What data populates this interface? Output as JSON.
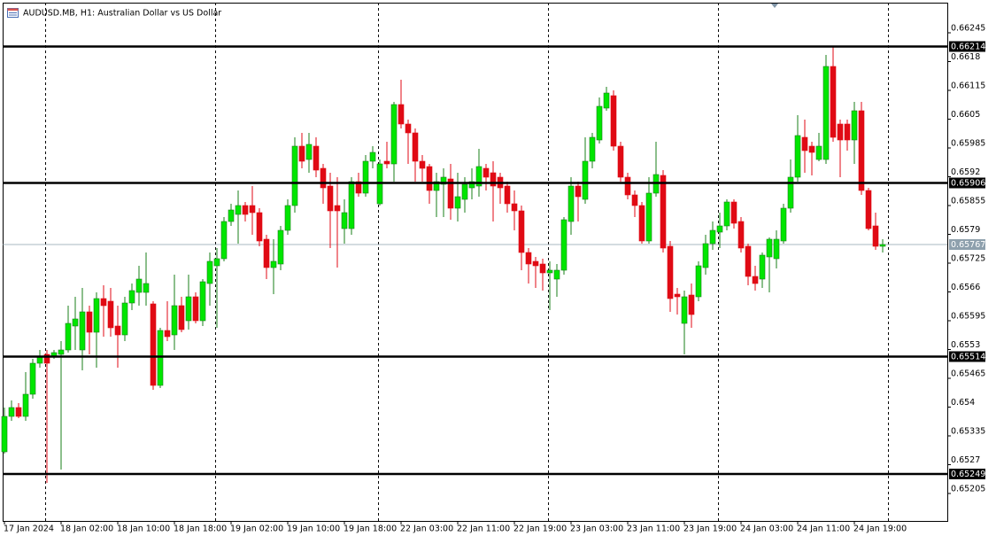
{
  "chart_data": {
    "type": "candlestick",
    "title": "AUDUSD.MB, H1:  Australian Dollar vs US Dollar",
    "categories": [
      "17 Jan 2024",
      null,
      null,
      null,
      null,
      null,
      null,
      null,
      "18 Jan 02:00",
      null,
      null,
      null,
      null,
      null,
      null,
      null,
      "18 Jan 10:00",
      null,
      null,
      null,
      null,
      null,
      null,
      null,
      "18 Jan 18:00",
      null,
      null,
      null,
      null,
      null,
      null,
      null,
      "19 Jan 02:00",
      null,
      null,
      null,
      null,
      null,
      null,
      null,
      "19 Jan 10:00",
      null,
      null,
      null,
      null,
      null,
      null,
      null,
      "19 Jan 18:00",
      null,
      null,
      null,
      null,
      null,
      null,
      null,
      "22 Jan 03:00",
      null,
      null,
      null,
      null,
      null,
      null,
      null,
      "22 Jan 11:00",
      null,
      null,
      null,
      null,
      null,
      null,
      null,
      "22 Jan 19:00",
      null,
      null,
      null,
      null,
      null,
      null,
      null,
      "23 Jan 03:00",
      null,
      null,
      null,
      null,
      null,
      null,
      null,
      "23 Jan 11:00",
      null,
      null,
      null,
      null,
      null,
      null,
      null,
      "23 Jan 19:00",
      null,
      null,
      null,
      null,
      null,
      null,
      null,
      "24 Jan 03:00",
      null,
      null,
      null,
      null,
      null,
      null,
      null,
      "24 Jan 11:00",
      null,
      null,
      null,
      null,
      null,
      null,
      null,
      "24 Jan 19:00",
      null,
      null,
      null,
      null
    ],
    "open": [
      0.65299,
      0.65379,
      0.65399,
      0.65379,
      0.65429,
      0.65499,
      0.65519,
      0.65515,
      0.65519,
      0.65529,
      0.65583,
      0.65529,
      0.65615,
      0.65569,
      0.65645,
      0.65639,
      0.65583,
      0.65563,
      0.65635,
      0.65659,
      0.65659,
      0.65633,
      0.65449,
      0.65573,
      0.65563,
      0.65629,
      0.65595,
      0.65649,
      0.65595,
      0.65679,
      0.65719,
      0.65735,
      0.65819,
      0.65835,
      0.65855,
      0.65855,
      0.65839,
      0.65779,
      0.65715,
      0.65723,
      0.65799,
      0.65855,
      0.65989,
      0.65959,
      0.65989,
      0.65939,
      0.65899,
      0.65855,
      0.65803,
      0.65803,
      0.65909,
      0.65883,
      0.65955,
      0.65859,
      0.65955,
      0.65949,
      0.66083,
      0.66039,
      0.66019,
      0.65955,
      0.65943,
      0.65889,
      0.65903,
      0.65915,
      0.65849,
      0.65869,
      0.65895,
      0.65899,
      0.65939,
      0.65929,
      0.65919,
      0.65899,
      0.65859,
      0.65843,
      0.65749,
      0.65729,
      0.65723,
      0.65703,
      0.65689,
      0.65709,
      0.65819,
      0.65899,
      0.65869,
      0.65955,
      0.66003,
      0.66075,
      0.66103,
      0.65989,
      0.65919,
      0.65879,
      0.65855,
      0.65775,
      0.65883,
      0.65923,
      0.65763,
      0.65655,
      0.65589,
      0.65653,
      0.65649,
      0.65715,
      0.65769,
      0.65795,
      0.65809,
      0.65863,
      0.65819,
      0.65763,
      0.65695,
      0.65689,
      0.65739,
      0.65735,
      0.65775,
      0.65849,
      0.65919,
      0.66009,
      0.65989,
      0.65959,
      0.65959,
      0.66169,
      0.66039,
      0.66039,
      0.66003,
      0.66069,
      0.65889,
      0.65809,
      0.65763
    ],
    "high": [
      0.65399,
      0.65415,
      0.65409,
      0.65479,
      0.65509,
      0.65529,
      0.65529,
      0.65529,
      0.65549,
      0.65629,
      0.65649,
      0.65669,
      0.65629,
      0.65659,
      0.65675,
      0.65669,
      0.65629,
      0.65649,
      0.65679,
      0.65719,
      0.65749,
      0.65639,
      0.65579,
      0.65639,
      0.65699,
      0.65649,
      0.65699,
      0.65659,
      0.65689,
      0.65749,
      0.65759,
      0.65829,
      0.65859,
      0.65889,
      0.65863,
      0.65899,
      0.65849,
      0.65789,
      0.65779,
      0.65809,
      0.65869,
      0.66009,
      0.66019,
      0.66019,
      0.66009,
      0.65949,
      0.65929,
      0.65919,
      0.65869,
      0.65919,
      0.65929,
      0.65969,
      0.65989,
      0.65959,
      0.65999,
      0.66089,
      0.66139,
      0.66049,
      0.66029,
      0.65969,
      0.65949,
      0.65929,
      0.65939,
      0.65949,
      0.65929,
      0.65919,
      0.65939,
      0.65983,
      0.65949,
      0.65955,
      0.65929,
      0.65909,
      0.65889,
      0.65855,
      0.65759,
      0.65739,
      0.65735,
      0.65729,
      0.65723,
      0.65829,
      0.65919,
      0.65909,
      0.66009,
      0.66019,
      0.66099,
      0.66123,
      0.66115,
      0.65999,
      0.65929,
      0.65889,
      0.65863,
      0.65919,
      0.65999,
      0.65935,
      0.65775,
      0.65669,
      0.65663,
      0.65679,
      0.65729,
      0.65789,
      0.65819,
      0.65839,
      0.65869,
      0.65869,
      0.65829,
      0.65769,
      0.65719,
      0.65749,
      0.65783,
      0.65799,
      0.65859,
      0.65959,
      0.66059,
      0.66049,
      0.65999,
      0.66019,
      0.66195,
      0.66215,
      0.66049,
      0.66049,
      0.66089,
      0.66089,
      0.65895,
      0.65839,
      0.65779
    ],
    "low": [
      0.65295,
      0.65369,
      0.65375,
      0.65369,
      0.65419,
      0.65489,
      0.65229,
      0.65509,
      0.65259,
      0.65523,
      0.65529,
      0.65483,
      0.65519,
      0.65489,
      0.65559,
      0.65559,
      0.65489,
      0.65549,
      0.65619,
      0.65629,
      0.65629,
      0.65439,
      0.65443,
      0.65549,
      0.65529,
      0.65569,
      0.65575,
      0.65589,
      0.65583,
      0.65629,
      0.65579,
      0.65729,
      0.65809,
      0.65769,
      0.65819,
      0.65789,
      0.65763,
      0.65689,
      0.65655,
      0.65709,
      0.65789,
      0.65839,
      0.65939,
      0.65929,
      0.65919,
      0.65859,
      0.65759,
      0.65715,
      0.65769,
      0.65789,
      0.65875,
      0.65875,
      0.65939,
      0.65855,
      0.65939,
      0.65909,
      0.66029,
      0.65949,
      0.65909,
      0.65909,
      0.65859,
      0.65829,
      0.65829,
      0.65823,
      0.65819,
      0.65839,
      0.65869,
      0.65875,
      0.65889,
      0.65819,
      0.65859,
      0.65839,
      0.65799,
      0.65709,
      0.65679,
      0.65669,
      0.65663,
      0.65619,
      0.65649,
      0.65699,
      0.65789,
      0.65819,
      0.65859,
      0.65939,
      0.65995,
      0.66069,
      0.65979,
      0.65909,
      0.65869,
      0.65829,
      0.65769,
      0.65769,
      0.65875,
      0.65749,
      0.65615,
      0.65609,
      0.65519,
      0.65579,
      0.65639,
      0.65699,
      0.65755,
      0.65759,
      0.65799,
      0.65803,
      0.65749,
      0.65675,
      0.65663,
      0.65669,
      0.65659,
      0.65713,
      0.65769,
      0.65839,
      0.65909,
      0.65929,
      0.65923,
      0.65955,
      0.65949,
      0.65999,
      0.65919,
      0.65979,
      0.65949,
      0.65879,
      0.65799,
      0.65755,
      0.65749
    ],
    "close": [
      0.65379,
      0.65399,
      0.65379,
      0.65429,
      0.65499,
      0.65513,
      0.65499,
      0.65523,
      0.65529,
      0.65589,
      0.65599,
      0.65615,
      0.65569,
      0.65645,
      0.65629,
      0.65579,
      0.65563,
      0.65635,
      0.65663,
      0.65689,
      0.65679,
      0.65449,
      0.65573,
      0.65559,
      0.65629,
      0.65575,
      0.65649,
      0.65595,
      0.65683,
      0.65729,
      0.65735,
      0.65819,
      0.65845,
      0.65855,
      0.65835,
      0.65839,
      0.65775,
      0.65715,
      0.65729,
      0.65799,
      0.65855,
      0.65989,
      0.65955,
      0.65993,
      0.65935,
      0.65895,
      0.65843,
      0.65843,
      0.65839,
      0.65909,
      0.65883,
      0.65955,
      0.65975,
      0.65949,
      0.65949,
      0.66083,
      0.66039,
      0.66019,
      0.65955,
      0.65939,
      0.65889,
      0.65909,
      0.65919,
      0.65849,
      0.65875,
      0.65903,
      0.65909,
      0.65943,
      0.65919,
      0.65899,
      0.65895,
      0.65859,
      0.65843,
      0.65749,
      0.65723,
      0.65719,
      0.65703,
      0.65709,
      0.65709,
      0.65823,
      0.65899,
      0.65875,
      0.65955,
      0.66009,
      0.66079,
      0.66109,
      0.65989,
      0.65919,
      0.65879,
      0.65855,
      0.65775,
      0.65883,
      0.65925,
      0.65759,
      0.65645,
      0.65649,
      0.65649,
      0.65609,
      0.65719,
      0.65769,
      0.65799,
      0.65809,
      0.65863,
      0.65815,
      0.65759,
      0.65695,
      0.65679,
      0.65743,
      0.65779,
      0.65779,
      0.65849,
      0.65919,
      0.66013,
      0.65979,
      0.65975,
      0.65989,
      0.66169,
      0.66009,
      0.66003,
      0.66003,
      0.66069,
      0.65889,
      0.65803,
      0.65763,
      0.65767
    ],
    "up_color": "#00e600",
    "down_color": "#e00a14",
    "levels": [
      0.66214,
      0.65906,
      0.65514,
      0.65249
    ],
    "last_price": 0.65767,
    "ylim": [
      0.65143,
      0.66313
    ],
    "yticks": [
      0.66245,
      0.6618,
      0.66115,
      0.6605,
      0.65985,
      0.6592,
      0.65855,
      0.6579,
      0.65725,
      0.6566,
      0.65595,
      0.6553,
      0.65465,
      0.654,
      0.65335,
      0.6527,
      0.65205
    ],
    "grid": false
  }
}
